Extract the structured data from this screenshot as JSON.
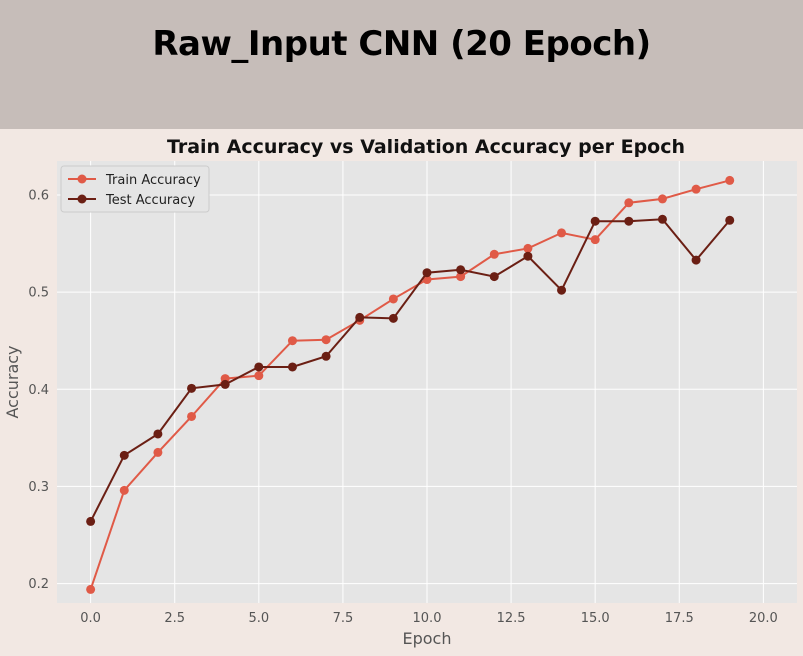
{
  "banner": {
    "title": "Raw_Input CNN (20 Epoch)"
  },
  "colors": {
    "train": "#e05a47",
    "test": "#6b1f14",
    "plot_bg": "#e5e5e5",
    "grid": "#ffffff",
    "banner_bg": "#c6bdb9",
    "page_bg": "#f2e8e3"
  },
  "chart_data": {
    "type": "line",
    "title": "Train Accuracy vs Validation Accuracy per Epoch",
    "xlabel": "Epoch",
    "ylabel": "Accuracy",
    "xlim": [
      -1.0,
      21.0
    ],
    "ylim": [
      0.18,
      0.635
    ],
    "xticks": [
      0.0,
      2.5,
      5.0,
      7.5,
      10.0,
      12.5,
      15.0,
      17.5,
      20.0
    ],
    "xtick_labels": [
      "0.0",
      "2.5",
      "5.0",
      "7.5",
      "10.0",
      "12.5",
      "15.0",
      "17.5",
      "20.0"
    ],
    "yticks": [
      0.2,
      0.3,
      0.4,
      0.5,
      0.6
    ],
    "ytick_labels": [
      "0.2",
      "0.3",
      "0.4",
      "0.5",
      "0.6"
    ],
    "grid": true,
    "legend_position": "top-left",
    "x": [
      0,
      1,
      2,
      3,
      4,
      5,
      6,
      7,
      8,
      9,
      10,
      11,
      12,
      13,
      14,
      15,
      16,
      17,
      18,
      19
    ],
    "series": [
      {
        "name": "Train Accuracy",
        "color": "#e05a47",
        "values": [
          0.194,
          0.296,
          0.335,
          0.372,
          0.411,
          0.414,
          0.45,
          0.451,
          0.471,
          0.493,
          0.513,
          0.516,
          0.539,
          0.545,
          0.561,
          0.554,
          0.592,
          0.596,
          0.606,
          0.615
        ]
      },
      {
        "name": "Test Accuracy",
        "color": "#6b1f14",
        "values": [
          0.264,
          0.332,
          0.354,
          0.401,
          0.405,
          0.423,
          0.423,
          0.434,
          0.474,
          0.473,
          0.52,
          0.523,
          0.516,
          0.537,
          0.502,
          0.573,
          0.573,
          0.575,
          0.533,
          0.574
        ]
      }
    ]
  }
}
